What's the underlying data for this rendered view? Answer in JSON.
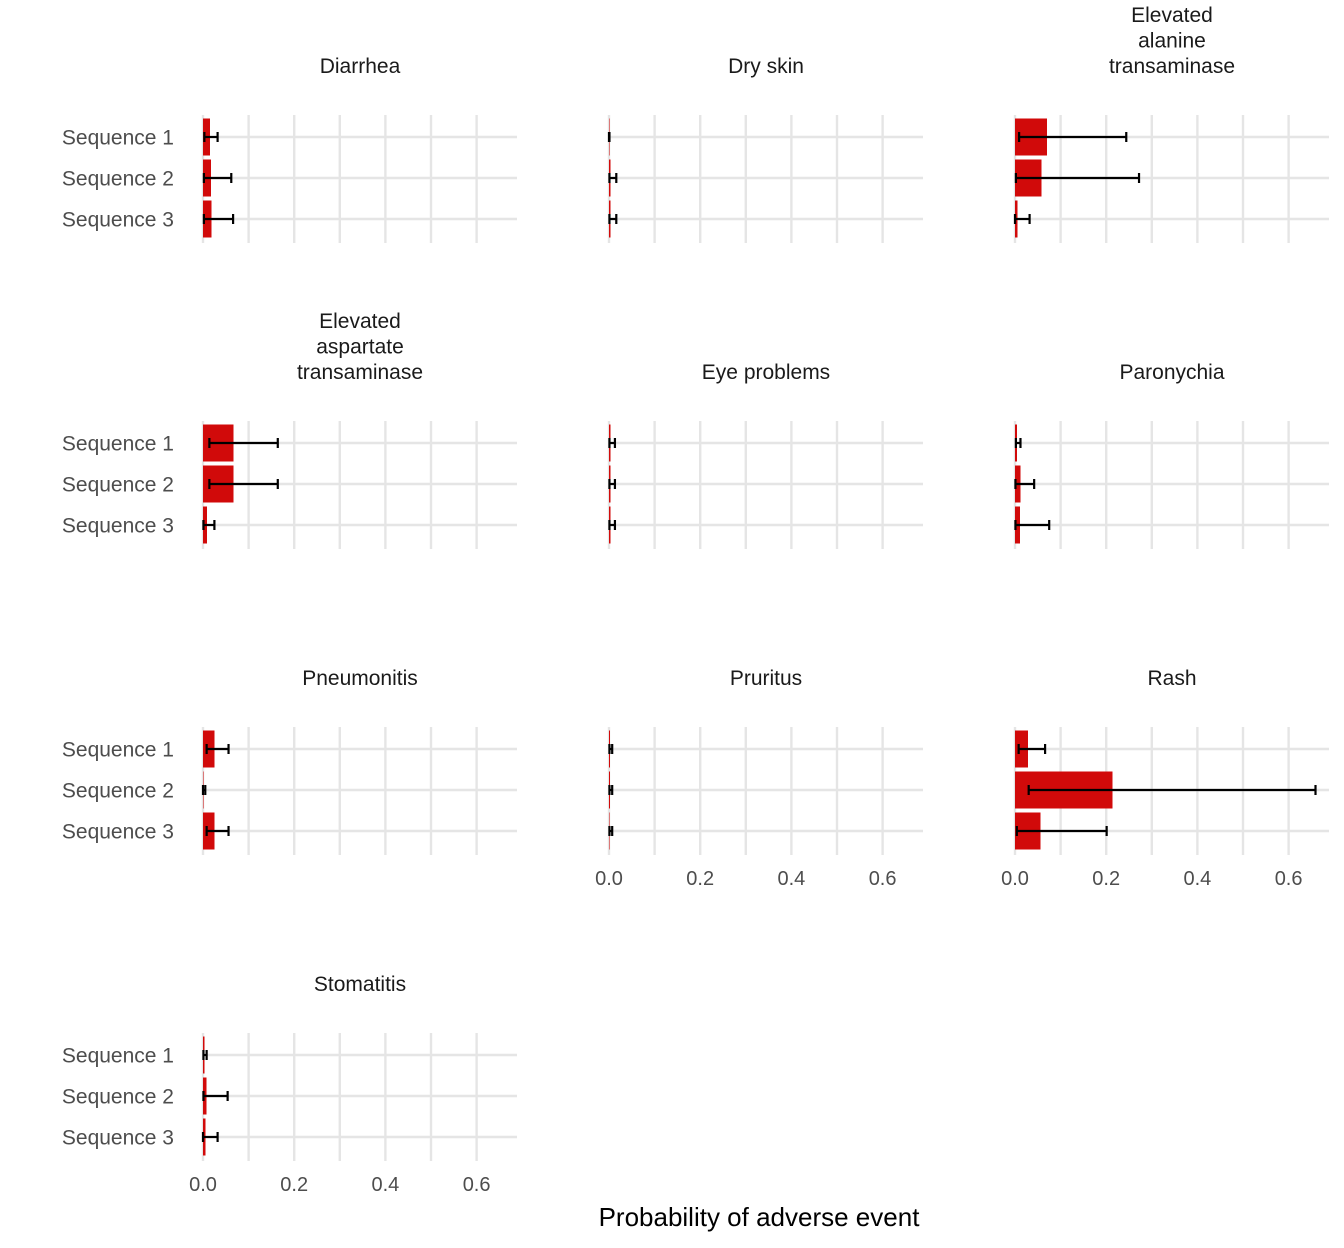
{
  "chart_data": {
    "type": "bar",
    "orientation": "horizontal",
    "layout": "facet-wrap-3-columns",
    "xlabel": "Probability of adverse event",
    "ylabel": "",
    "xlim": [
      0,
      0.68
    ],
    "x_ticks": [
      "0.0",
      "0.2",
      "0.4",
      "0.6"
    ],
    "categories": [
      "Sequence 1",
      "Sequence 2",
      "Sequence 3"
    ],
    "bar_color": "#d10a0a",
    "errorbar_color": "#000000",
    "grid": true,
    "facets": [
      {
        "title": [
          "Diarrhea"
        ],
        "values": [
          0.015,
          0.017,
          0.019
        ],
        "lower": [
          0.003,
          0.002,
          0.002
        ],
        "upper": [
          0.032,
          0.062,
          0.066
        ]
      },
      {
        "title": [
          "Dry skin"
        ],
        "values": [
          0.0005,
          0.003,
          0.003
        ],
        "lower": [
          0.0,
          0.001,
          0.001
        ],
        "upper": [
          0.001,
          0.016,
          0.016
        ]
      },
      {
        "title": [
          "Elevated",
          "alanine",
          "transaminase"
        ],
        "values": [
          0.07,
          0.058,
          0.006
        ],
        "lower": [
          0.009,
          0.002,
          0.0
        ],
        "upper": [
          0.244,
          0.272,
          0.032
        ]
      },
      {
        "title": [
          "Elevated",
          "aspartate",
          "transaminase"
        ],
        "values": [
          0.067,
          0.067,
          0.009
        ],
        "lower": [
          0.014,
          0.014,
          0.001
        ],
        "upper": [
          0.164,
          0.164,
          0.025
        ]
      },
      {
        "title": [
          "Eye problems"
        ],
        "values": [
          0.003,
          0.003,
          0.003
        ],
        "lower": [
          0.001,
          0.001,
          0.001
        ],
        "upper": [
          0.013,
          0.013,
          0.013
        ]
      },
      {
        "title": [
          "Paronychia"
        ],
        "values": [
          0.004,
          0.012,
          0.011
        ],
        "lower": [
          0.002,
          0.001,
          0.001
        ],
        "upper": [
          0.012,
          0.042,
          0.075
        ]
      },
      {
        "title": [
          "Pneumonitis"
        ],
        "values": [
          0.025,
          0.001,
          0.025
        ],
        "lower": [
          0.008,
          0.0,
          0.008
        ],
        "upper": [
          0.056,
          0.005,
          0.056
        ]
      },
      {
        "title": [
          "Pruritus"
        ],
        "values": [
          0.002,
          0.002,
          0.001
        ],
        "lower": [
          0.001,
          0.001,
          0.001
        ],
        "upper": [
          0.007,
          0.007,
          0.007
        ]
      },
      {
        "title": [
          "Rash"
        ],
        "values": [
          0.028,
          0.214,
          0.056
        ],
        "lower": [
          0.008,
          0.03,
          0.004
        ],
        "upper": [
          0.066,
          0.659,
          0.201
        ]
      },
      {
        "title": [
          "Stomatitis"
        ],
        "values": [
          0.003,
          0.008,
          0.005
        ],
        "lower": [
          0.001,
          0.001,
          0.0
        ],
        "upper": [
          0.008,
          0.054,
          0.032
        ]
      }
    ]
  }
}
